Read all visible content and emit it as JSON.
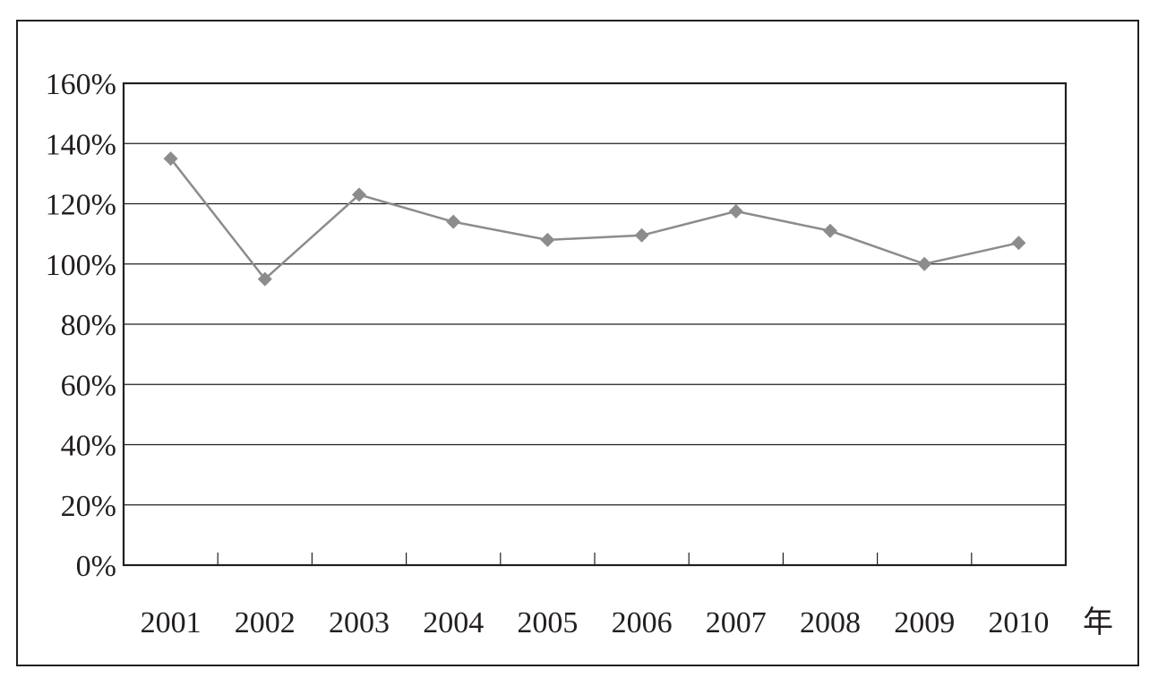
{
  "chart_data": {
    "type": "line",
    "title": "",
    "xlabel": "年",
    "ylabel": "",
    "categories": [
      "2001",
      "2002",
      "2003",
      "2004",
      "2005",
      "2006",
      "2007",
      "2008",
      "2009",
      "2010"
    ],
    "series": [
      {
        "values": [
          1.35,
          0.95,
          1.23,
          1.14,
          1.08,
          1.095,
          1.175,
          1.11,
          1.0,
          1.07
        ]
      }
    ],
    "ylim": [
      0,
      1.6
    ],
    "yticks": [
      0,
      0.2,
      0.4,
      0.6,
      0.8,
      1.0,
      1.2,
      1.4,
      1.6
    ],
    "ytick_labels": [
      "0%",
      "20%",
      "40%",
      "60%",
      "80%",
      "100%",
      "120%",
      "140%",
      "160%"
    ],
    "y_format": "percent",
    "grid": "horizontal",
    "legend": "none",
    "marker": "diamond",
    "colors": {
      "line": "#8c8c8c",
      "marker": "#8c8c8c",
      "axis": "#231f20",
      "grid": "#231f20"
    }
  }
}
